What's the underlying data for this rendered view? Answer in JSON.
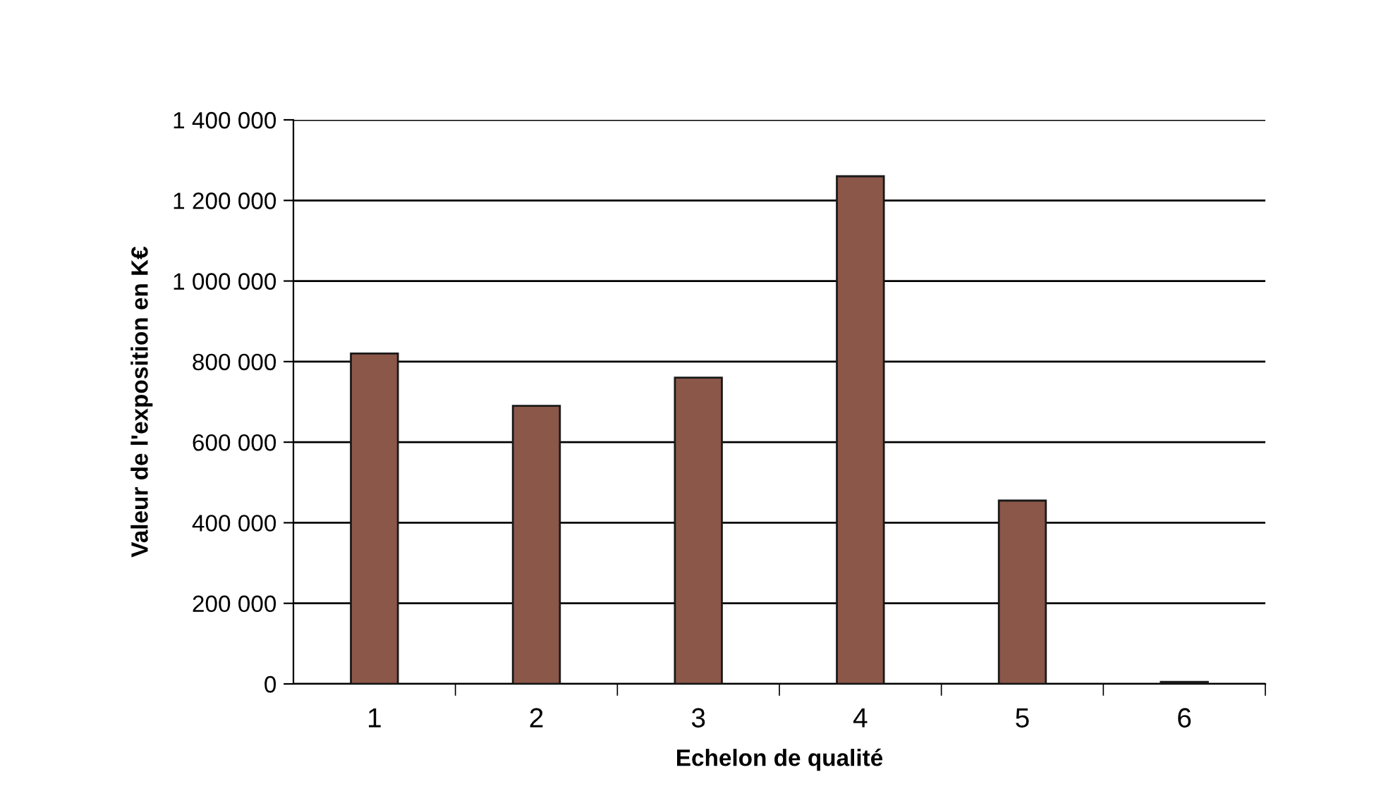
{
  "chart_data": {
    "type": "bar",
    "xlabel": "Echelon de qualité",
    "ylabel": "Valeur de l'exposition en K€",
    "categories": [
      "1",
      "2",
      "3",
      "4",
      "5",
      "6"
    ],
    "values": [
      820000,
      690000,
      760000,
      1260000,
      455000,
      5000
    ],
    "color": "#8b5748",
    "ylim": [
      0,
      1400000
    ],
    "yticks": [
      {
        "value": 0,
        "label": "0"
      },
      {
        "value": 200000,
        "label": "200 000"
      },
      {
        "value": 400000,
        "label": "400 000"
      },
      {
        "value": 600000,
        "label": "600 000"
      },
      {
        "value": 800000,
        "label": "800 000"
      },
      {
        "value": 1000000,
        "label": "1 000 000"
      },
      {
        "value": 1200000,
        "label": "1 200 000"
      },
      {
        "value": 1400000,
        "label": "1 400 000"
      }
    ],
    "grid": "y",
    "legend": false
  }
}
